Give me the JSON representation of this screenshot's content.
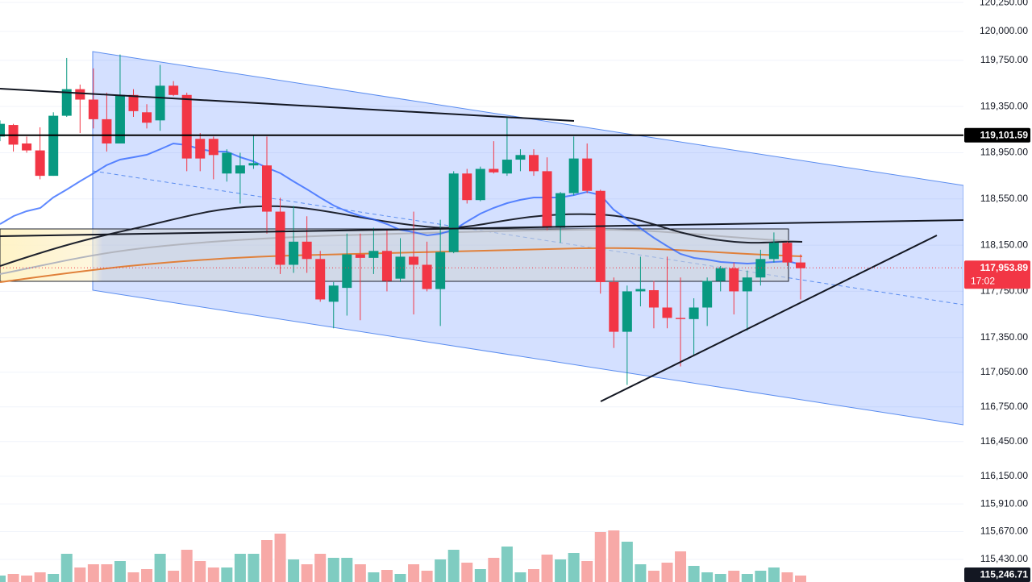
{
  "chart_data": {
    "type": "candlestick",
    "open": [
      119090,
      119190,
      119030,
      118970,
      118750,
      119270,
      119500,
      119410,
      119240,
      119030,
      119450,
      119300,
      119230,
      119530,
      119450,
      119070,
      119070,
      118770,
      118770,
      118840,
      118840,
      118440,
      117980,
      118180,
      118030,
      117660,
      117780,
      118070,
      118040,
      118100,
      117860,
      118050,
      117980,
      117770,
      118090,
      118770,
      118540,
      118810,
      118770,
      118890,
      118930,
      118790,
      118300,
      118600,
      118900,
      118620,
      117830,
      117400,
      117750,
      117760,
      117610,
      117520,
      117510,
      117610,
      117840,
      117950,
      117750,
      117870,
      118030,
      118170,
      118000
    ],
    "high": [
      119230,
      119200,
      119090,
      119170,
      119300,
      119770,
      119540,
      119680,
      119470,
      119800,
      119500,
      119370,
      119710,
      119570,
      119470,
      119120,
      119090,
      118980,
      118950,
      119100,
      119090,
      118560,
      118490,
      118400,
      118100,
      117830,
      118250,
      118250,
      118300,
      118280,
      118210,
      118440,
      118180,
      118370,
      118790,
      118810,
      118830,
      119050,
      119260,
      118980,
      118980,
      118910,
      118610,
      119090,
      119030,
      118630,
      117870,
      117800,
      118050,
      117840,
      118050,
      117870,
      117690,
      117870,
      117970,
      118000,
      117930,
      118110,
      118260,
      118180,
      118070
    ],
    "low": [
      119050,
      118960,
      118950,
      118720,
      118750,
      119260,
      119120,
      119160,
      118960,
      119030,
      119260,
      119160,
      119140,
      119440,
      118790,
      118790,
      118720,
      118700,
      118510,
      118810,
      118250,
      117900,
      117910,
      117910,
      117660,
      117430,
      117540,
      117500,
      117900,
      117750,
      117830,
      117550,
      117750,
      117450,
      118080,
      118510,
      118530,
      118770,
      118750,
      118790,
      118750,
      118280,
      118170,
      118580,
      118600,
      117730,
      117260,
      116940,
      117620,
      117430,
      117430,
      117100,
      117200,
      117450,
      117750,
      117550,
      117410,
      117800,
      118000,
      117970,
      117680
    ],
    "close": [
      119200,
      119020,
      118970,
      118750,
      119270,
      119500,
      119410,
      119240,
      119030,
      119450,
      119310,
      119210,
      119530,
      119450,
      118900,
      118900,
      118930,
      118950,
      118840,
      118860,
      118440,
      117980,
      118180,
      118030,
      117680,
      117800,
      118070,
      118040,
      118100,
      117840,
      118050,
      117980,
      117770,
      118090,
      118770,
      118540,
      118810,
      118780,
      118890,
      118930,
      118790,
      118300,
      118600,
      118900,
      118620,
      117830,
      117400,
      117750,
      117770,
      117610,
      117520,
      117510,
      117610,
      117840,
      117950,
      117750,
      117870,
      118030,
      118170,
      118000,
      117950
    ],
    "volume": [
      8,
      10,
      8,
      12,
      10,
      35,
      18,
      22,
      22,
      26,
      12,
      16,
      35,
      14,
      40,
      26,
      18,
      18,
      35,
      35,
      52,
      60,
      28,
      22,
      35,
      30,
      30,
      22,
      12,
      15,
      10,
      22,
      14,
      28,
      40,
      24,
      16,
      30,
      44,
      12,
      16,
      34,
      28,
      36,
      26,
      62,
      64,
      50,
      22,
      14,
      24,
      38,
      20,
      12,
      10,
      14,
      10,
      14,
      18,
      12,
      8
    ],
    "colors": {
      "up": "#089981",
      "down": "#f23645",
      "volume_up": "#7fccc1",
      "volume_down": "#f7a9a7"
    },
    "ylim": [
      115234,
      120272
    ],
    "yticks": [
      {
        "value": 120250,
        "label": "120,250.00"
      },
      {
        "value": 120000,
        "label": "120,000.00"
      },
      {
        "value": 119750,
        "label": "119,750.00"
      },
      {
        "value": 119350,
        "label": "119,350.00"
      },
      {
        "value": 118950,
        "label": "118,950.00"
      },
      {
        "value": 118550,
        "label": "118,550.00"
      },
      {
        "value": 118150,
        "label": "118,150.00"
      },
      {
        "value": 117750,
        "label": "117,750.00"
      },
      {
        "value": 117350,
        "label": "117,350.00"
      },
      {
        "value": 117050,
        "label": "117,050.00"
      },
      {
        "value": 116750,
        "label": "116,750.00"
      },
      {
        "value": 116450,
        "label": "116,450.00"
      },
      {
        "value": 116150,
        "label": "116,150.00"
      },
      {
        "value": 115910,
        "label": "115,910.00"
      },
      {
        "value": 115670,
        "label": "115,670.00"
      },
      {
        "value": 115430,
        "label": "115,430.00"
      }
    ],
    "grid": true,
    "price_labels": [
      {
        "value": 119101.59,
        "label": "119,101.59",
        "color": "#000000"
      },
      {
        "value": 117953.89,
        "label": "117,953.89",
        "color": "#f23645"
      },
      {
        "value": 115246.71,
        "label": "115,246.71",
        "color": "#131722"
      }
    ],
    "countdown": "17:02"
  }
}
